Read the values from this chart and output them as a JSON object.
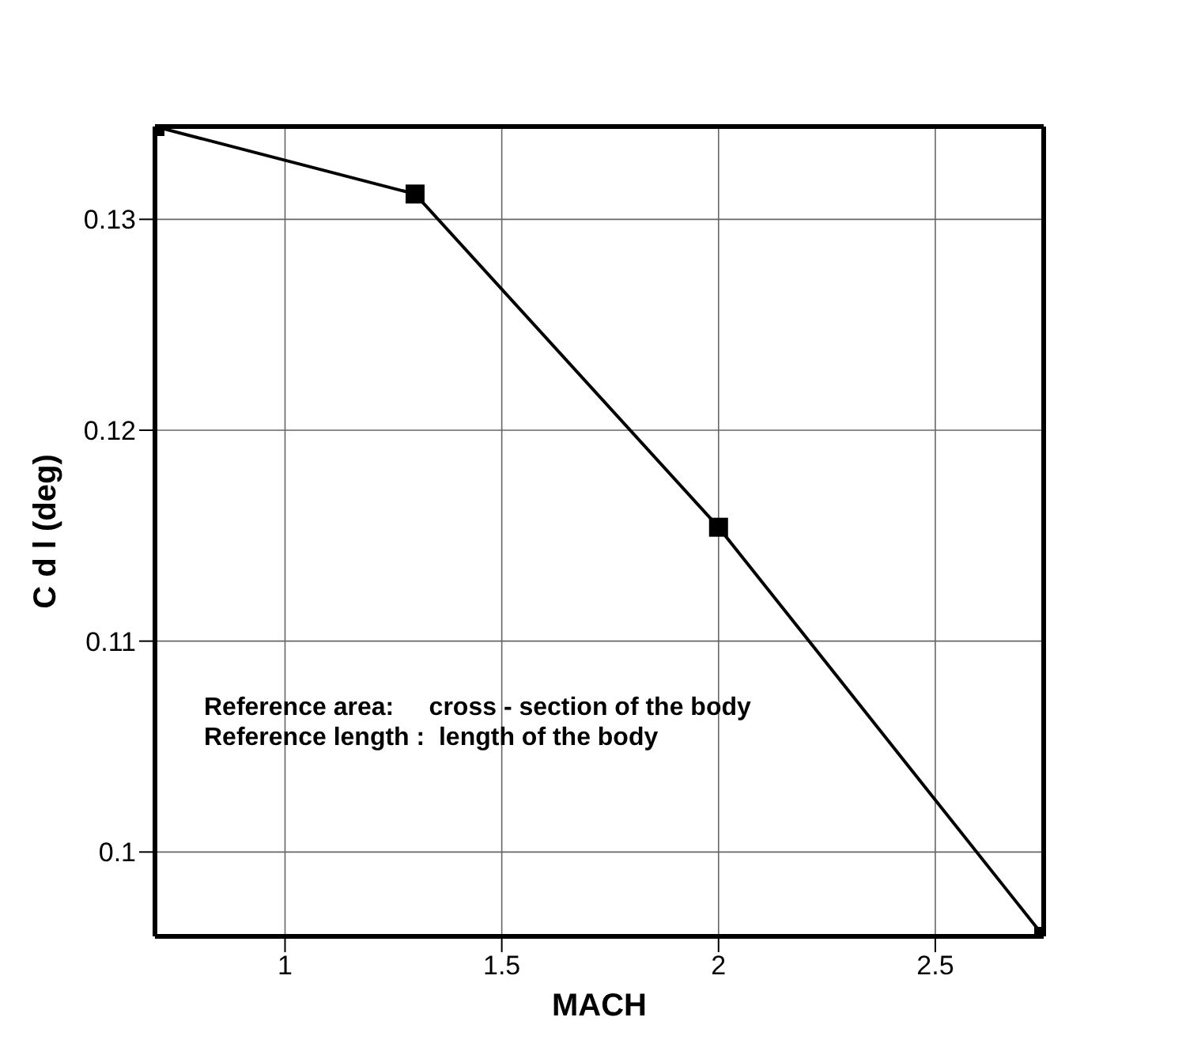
{
  "chart_data": {
    "type": "line",
    "xlabel": "MACH",
    "ylabel": "C d l (deg)",
    "x": [
      0.7,
      1.3,
      2.0,
      2.75
    ],
    "series": [
      {
        "color": "#000000",
        "values": [
          0.1344,
          0.1312,
          0.1154,
          0.096
        ]
      }
    ],
    "xlim": [
      0.7,
      2.75
    ],
    "xticks": [
      1,
      1.5,
      2,
      2.5
    ],
    "ylim": [
      0.096,
      0.1344
    ],
    "yticks": [
      0.1,
      0.11,
      0.12,
      0.13
    ],
    "grid": true,
    "marker": "square",
    "line_style": "solid",
    "annotations": [
      "Reference area:     cross - section of the body",
      "Reference length :  length of the body"
    ]
  }
}
